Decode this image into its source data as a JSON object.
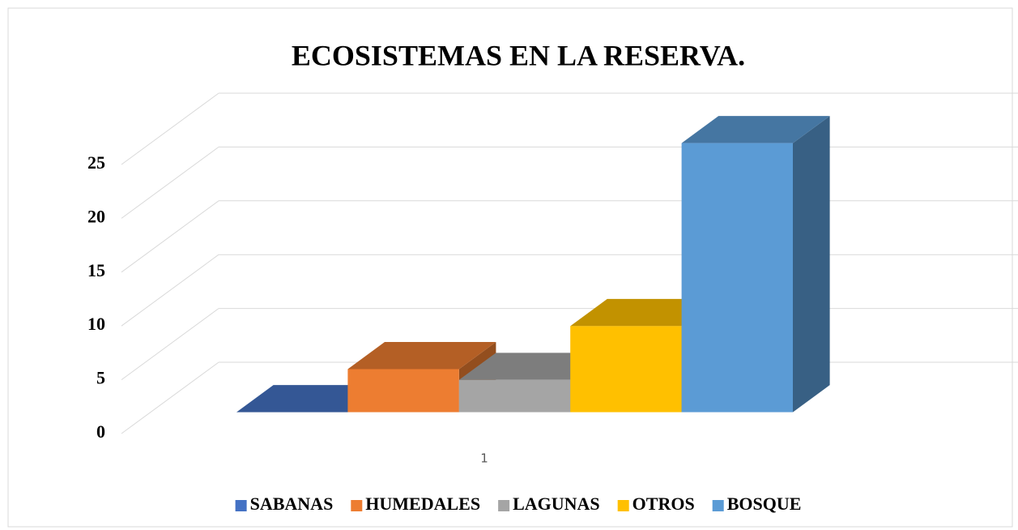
{
  "chart_data": {
    "type": "bar3d",
    "title": "ECOSISTEMAS EN LA RESERVA.",
    "categories": [
      "1"
    ],
    "series": [
      {
        "name": "SABANAS",
        "color": "#4472c4",
        "values": [
          0
        ]
      },
      {
        "name": "HUMEDALES",
        "color": "#ed7d31",
        "values": [
          4
        ]
      },
      {
        "name": "LAGUNAS",
        "color": "#a5a5a5",
        "values": [
          3
        ]
      },
      {
        "name": "OTROS",
        "color": "#ffc000",
        "values": [
          8
        ]
      },
      {
        "name": "BOSQUE",
        "color": "#5b9bd5",
        "values": [
          25
        ]
      }
    ],
    "ylim": [
      0,
      25
    ],
    "yticks": [
      0,
      5,
      10,
      15,
      20,
      25
    ],
    "grid": true,
    "legend": "bottom"
  }
}
